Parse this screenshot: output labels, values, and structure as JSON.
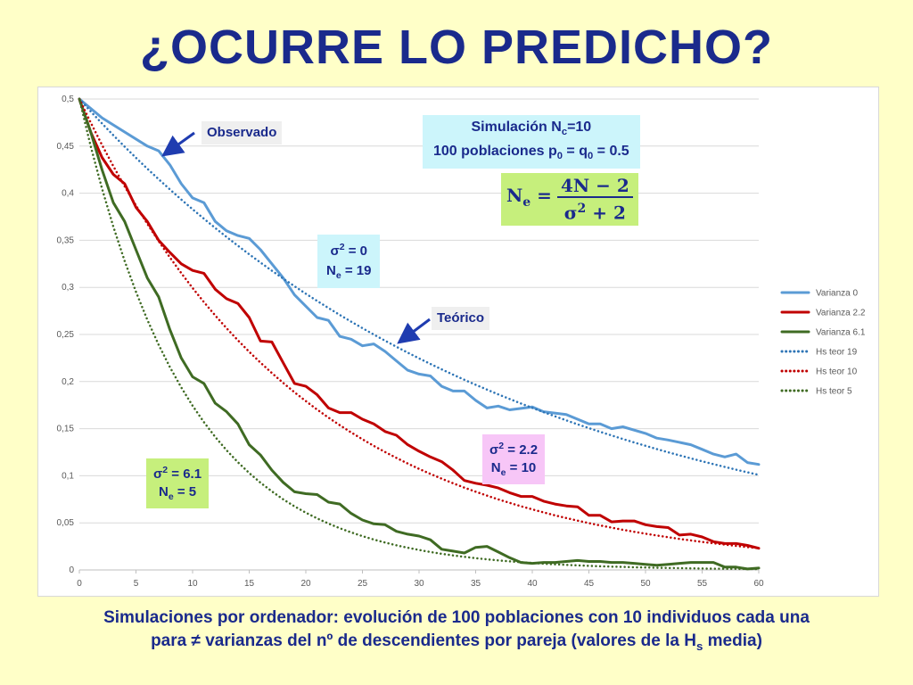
{
  "title": "¿OCURRE LO PREDICHO?",
  "labels": {
    "observado": "Observado",
    "teorico": "Teórico",
    "sim_line1_a": "Simulación N",
    "sim_line1_sub": "c",
    "sim_line1_b": "=10",
    "sim_line2_a": "100 poblaciones p",
    "sim_p_sub": "0",
    "sim_line2_b": " = q",
    "sim_q_sub": "0",
    "sim_line2_c": " = 0.5",
    "formula_lhs": "N",
    "formula_lhs_sub": "e",
    "formula_eq": " =",
    "formula_num": "4N − 2",
    "formula_den_a": "σ",
    "formula_den_sup": "2",
    "formula_den_b": " + 2",
    "sigma": "σ",
    "sup2": "2",
    "ne": "N",
    "ne_sub": "e",
    "v0_sigma_val": " = 0",
    "v0_ne_val": " = 19",
    "v22_sigma_val": " = 2.2",
    "v22_ne_val": " = 10",
    "v61_sigma_val": " = 6.1",
    "v61_ne_val": " = 5"
  },
  "caption": {
    "part1": "Simulaciones por ordenador: evolución de 100 poblaciones con 10 individuos cada una",
    "part2": "para ≠ varianzas del nº de descendientes por pareja (valores de la H",
    "sub": "s",
    "part3": " media)"
  },
  "chart_data": {
    "type": "line",
    "xlim": [
      0,
      60
    ],
    "ylim": [
      0,
      0.5
    ],
    "x_ticks": [
      "0",
      "5",
      "10",
      "15",
      "20",
      "25",
      "30",
      "35",
      "40",
      "45",
      "50",
      "55",
      "60"
    ],
    "y_ticks": [
      "0",
      "0,05",
      "0,1",
      "0,15",
      "0,2",
      "0,25",
      "0,3",
      "0,35",
      "0,4",
      "0,45",
      "0,5"
    ],
    "grid": true,
    "legend_position": "right",
    "series": [
      {
        "name": "Varianza 0",
        "style": "solid",
        "color": "#5b9bd5",
        "points": [
          [
            0,
            0.5
          ],
          [
            2,
            0.48
          ],
          [
            4,
            0.465
          ],
          [
            6,
            0.45
          ],
          [
            7,
            0.445
          ],
          [
            8,
            0.43
          ],
          [
            9,
            0.41
          ],
          [
            10,
            0.395
          ],
          [
            11,
            0.39
          ],
          [
            12,
            0.37
          ],
          [
            13,
            0.36
          ],
          [
            14,
            0.355
          ],
          [
            15,
            0.352
          ],
          [
            16,
            0.34
          ],
          [
            17,
            0.325
          ],
          [
            18,
            0.31
          ],
          [
            19,
            0.292
          ],
          [
            20,
            0.28
          ],
          [
            21,
            0.268
          ],
          [
            22,
            0.265
          ],
          [
            23,
            0.248
          ],
          [
            24,
            0.245
          ],
          [
            25,
            0.238
          ],
          [
            26,
            0.24
          ],
          [
            27,
            0.232
          ],
          [
            28,
            0.222
          ],
          [
            29,
            0.212
          ],
          [
            30,
            0.208
          ],
          [
            31,
            0.206
          ],
          [
            32,
            0.195
          ],
          [
            33,
            0.19
          ],
          [
            34,
            0.19
          ],
          [
            35,
            0.18
          ],
          [
            36,
            0.172
          ],
          [
            37,
            0.174
          ],
          [
            38,
            0.17
          ],
          [
            40,
            0.173
          ],
          [
            41,
            0.168
          ],
          [
            43,
            0.165
          ],
          [
            45,
            0.155
          ],
          [
            46,
            0.155
          ],
          [
            47,
            0.15
          ],
          [
            48,
            0.152
          ],
          [
            50,
            0.145
          ],
          [
            51,
            0.14
          ],
          [
            52,
            0.138
          ],
          [
            54,
            0.133
          ],
          [
            55,
            0.128
          ],
          [
            56,
            0.123
          ],
          [
            57,
            0.12
          ],
          [
            58,
            0.123
          ],
          [
            59,
            0.114
          ],
          [
            61,
            0.112
          ]
        ]
      },
      {
        "name": "Varianza 2.2",
        "style": "solid",
        "color": "#c00000",
        "points": [
          [
            0,
            0.5
          ],
          [
            1,
            0.465
          ],
          [
            2,
            0.438
          ],
          [
            3,
            0.42
          ],
          [
            4,
            0.41
          ],
          [
            5,
            0.385
          ],
          [
            6,
            0.37
          ],
          [
            7,
            0.35
          ],
          [
            8,
            0.337
          ],
          [
            9,
            0.325
          ],
          [
            10,
            0.318
          ],
          [
            11,
            0.315
          ],
          [
            12,
            0.298
          ],
          [
            13,
            0.288
          ],
          [
            14,
            0.283
          ],
          [
            15,
            0.268
          ],
          [
            16,
            0.243
          ],
          [
            17,
            0.242
          ],
          [
            18,
            0.22
          ],
          [
            19,
            0.198
          ],
          [
            20,
            0.195
          ],
          [
            21,
            0.186
          ],
          [
            22,
            0.172
          ],
          [
            23,
            0.167
          ],
          [
            24,
            0.167
          ],
          [
            25,
            0.16
          ],
          [
            26,
            0.155
          ],
          [
            27,
            0.147
          ],
          [
            28,
            0.143
          ],
          [
            29,
            0.133
          ],
          [
            30,
            0.126
          ],
          [
            31,
            0.12
          ],
          [
            32,
            0.115
          ],
          [
            33,
            0.106
          ],
          [
            34,
            0.095
          ],
          [
            35,
            0.092
          ],
          [
            36,
            0.09
          ],
          [
            37,
            0.087
          ],
          [
            38,
            0.082
          ],
          [
            39,
            0.078
          ],
          [
            40,
            0.078
          ],
          [
            41,
            0.073
          ],
          [
            42,
            0.07
          ],
          [
            43,
            0.068
          ],
          [
            44,
            0.067
          ],
          [
            45,
            0.058
          ],
          [
            46,
            0.058
          ],
          [
            47,
            0.051
          ],
          [
            48,
            0.052
          ],
          [
            49,
            0.052
          ],
          [
            50,
            0.048
          ],
          [
            51,
            0.046
          ],
          [
            52,
            0.045
          ],
          [
            53,
            0.037
          ],
          [
            54,
            0.038
          ],
          [
            55,
            0.035
          ],
          [
            56,
            0.03
          ],
          [
            57,
            0.028
          ],
          [
            58,
            0.028
          ],
          [
            59,
            0.026
          ],
          [
            60,
            0.023
          ]
        ]
      },
      {
        "name": "Varianza 6.1",
        "style": "solid",
        "color": "#3f6b23",
        "points": [
          [
            0,
            0.5
          ],
          [
            1,
            0.465
          ],
          [
            2,
            0.425
          ],
          [
            3,
            0.39
          ],
          [
            4,
            0.37
          ],
          [
            5,
            0.34
          ],
          [
            6,
            0.31
          ],
          [
            7,
            0.29
          ],
          [
            8,
            0.255
          ],
          [
            9,
            0.225
          ],
          [
            10,
            0.205
          ],
          [
            11,
            0.198
          ],
          [
            12,
            0.177
          ],
          [
            13,
            0.168
          ],
          [
            14,
            0.155
          ],
          [
            15,
            0.133
          ],
          [
            16,
            0.122
          ],
          [
            17,
            0.106
          ],
          [
            18,
            0.093
          ],
          [
            19,
            0.083
          ],
          [
            20,
            0.081
          ],
          [
            21,
            0.08
          ],
          [
            22,
            0.072
          ],
          [
            23,
            0.07
          ],
          [
            24,
            0.06
          ],
          [
            25,
            0.053
          ],
          [
            26,
            0.049
          ],
          [
            27,
            0.048
          ],
          [
            28,
            0.041
          ],
          [
            29,
            0.038
          ],
          [
            30,
            0.036
          ],
          [
            31,
            0.032
          ],
          [
            32,
            0.022
          ],
          [
            33,
            0.02
          ],
          [
            34,
            0.018
          ],
          [
            35,
            0.024
          ],
          [
            36,
            0.025
          ],
          [
            37,
            0.019
          ],
          [
            38,
            0.013
          ],
          [
            39,
            0.008
          ],
          [
            40,
            0.007
          ],
          [
            41,
            0.008
          ],
          [
            42,
            0.008
          ],
          [
            43,
            0.009
          ],
          [
            44,
            0.01
          ],
          [
            45,
            0.009
          ],
          [
            46,
            0.009
          ],
          [
            47,
            0.008
          ],
          [
            48,
            0.008
          ],
          [
            49,
            0.007
          ],
          [
            50,
            0.006
          ],
          [
            51,
            0.005
          ],
          [
            52,
            0.006
          ],
          [
            53,
            0.007
          ],
          [
            54,
            0.008
          ],
          [
            55,
            0.008
          ],
          [
            56,
            0.008
          ],
          [
            57,
            0.003
          ],
          [
            58,
            0.003
          ],
          [
            59,
            0.001
          ],
          [
            60,
            0.002
          ]
        ]
      },
      {
        "name": "Hs teor 19",
        "style": "dotted",
        "color": "#2e75b6",
        "Ne": 19
      },
      {
        "name": "Hs teor 10",
        "style": "dotted",
        "color": "#c00000",
        "Ne": 10
      },
      {
        "name": "Hs teor 5",
        "style": "dotted",
        "color": "#3f6b23",
        "Ne": 5
      }
    ]
  }
}
